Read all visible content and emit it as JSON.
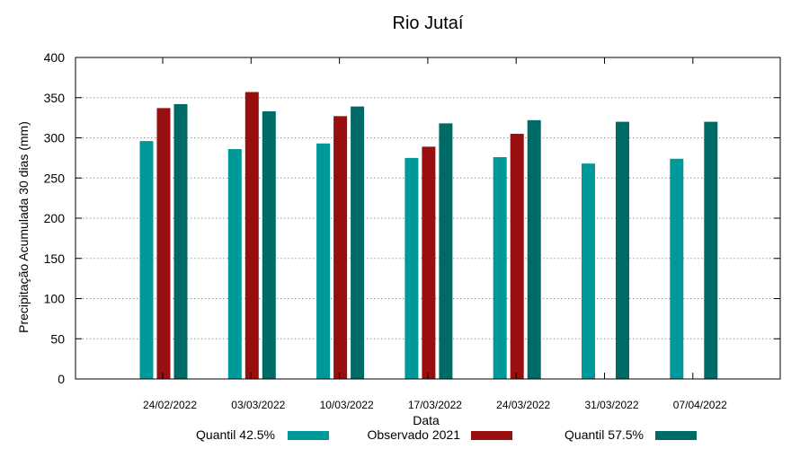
{
  "chart_data": {
    "type": "bar",
    "title": "Rio Jutaí",
    "xlabel": "Data",
    "ylabel": "Precipitação Acumulada 30 dias (mm)",
    "ylim": [
      0,
      400
    ],
    "yticks": [
      0,
      50,
      100,
      150,
      200,
      250,
      300,
      350,
      400
    ],
    "grid": true,
    "legend": "bottom",
    "categories": [
      "24/02/2022",
      "03/03/2022",
      "10/03/2022",
      "17/03/2022",
      "24/03/2022",
      "31/03/2022",
      "07/04/2022"
    ],
    "series": [
      {
        "name": "Quantil 42.5%",
        "color": "#009999",
        "values": [
          296,
          286,
          293,
          275,
          276,
          268,
          274
        ]
      },
      {
        "name": "Observado 2021",
        "color": "#990f0f",
        "values": [
          337,
          357,
          327,
          289,
          305,
          null,
          null
        ]
      },
      {
        "name": "Quantil 57.5%",
        "color": "#006a66",
        "values": [
          342,
          333,
          339,
          318,
          322,
          320,
          320
        ]
      }
    ]
  }
}
